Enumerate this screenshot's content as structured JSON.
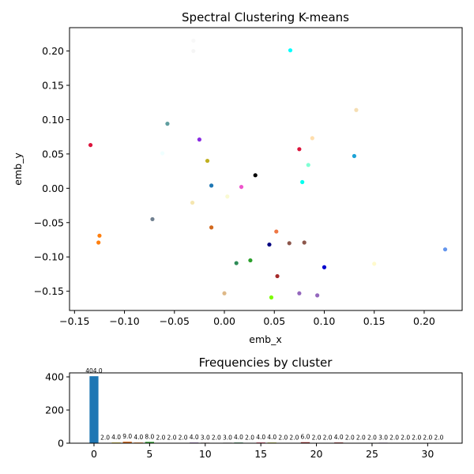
{
  "chart_data": [
    {
      "type": "scatter",
      "title": "Spectral Clustering K-means",
      "xlabel": "emb_x",
      "ylabel": "emb_y",
      "xlim": [
        -0.155,
        0.238
      ],
      "ylim": [
        -0.178,
        0.234
      ],
      "xticks": [
        -0.15,
        -0.1,
        -0.05,
        0.0,
        0.05,
        0.1,
        0.15,
        0.2
      ],
      "xtick_labels": [
        "−0.15",
        "−0.10",
        "−0.05",
        "0.00",
        "0.05",
        "0.10",
        "0.15",
        "0.20"
      ],
      "yticks": [
        -0.15,
        -0.1,
        -0.05,
        0.0,
        0.05,
        0.1,
        0.15,
        0.2
      ],
      "ytick_labels": [
        "−0.15",
        "−0.10",
        "−0.05",
        "0.00",
        "0.05",
        "0.10",
        "0.15",
        "0.20"
      ],
      "grid": false,
      "points": [
        {
          "x": -0.031,
          "y": 0.215,
          "color": "#f8f8f8"
        },
        {
          "x": -0.031,
          "y": 0.2,
          "color": "#f5f5f5"
        },
        {
          "x": 0.066,
          "y": 0.201,
          "color": "#00ffff"
        },
        {
          "x": 0.132,
          "y": 0.114,
          "color": "#f5deb3"
        },
        {
          "x": -0.057,
          "y": 0.094,
          "color": "#5f9ea0"
        },
        {
          "x": 0.088,
          "y": 0.073,
          "color": "#ffdead"
        },
        {
          "x": -0.134,
          "y": 0.063,
          "color": "#dc143c"
        },
        {
          "x": -0.025,
          "y": 0.071,
          "color": "#8a2be2"
        },
        {
          "x": 0.075,
          "y": 0.057,
          "color": "#dc143c"
        },
        {
          "x": -0.062,
          "y": 0.051,
          "color": "#f0ffff"
        },
        {
          "x": 0.13,
          "y": 0.047,
          "color": "#1ea3d6"
        },
        {
          "x": -0.017,
          "y": 0.04,
          "color": "#c0b020"
        },
        {
          "x": 0.084,
          "y": 0.034,
          "color": "#7fffd4"
        },
        {
          "x": 0.031,
          "y": 0.019,
          "color": "#000000"
        },
        {
          "x": 0.078,
          "y": 0.009,
          "color": "#00ffee"
        },
        {
          "x": -0.013,
          "y": 0.004,
          "color": "#1f77b4"
        },
        {
          "x": 0.017,
          "y": 0.002,
          "color": "#ee55cc"
        },
        {
          "x": 0.003,
          "y": -0.012,
          "color": "#fafad2"
        },
        {
          "x": -0.032,
          "y": -0.021,
          "color": "#f5e6b0"
        },
        {
          "x": -0.072,
          "y": -0.045,
          "color": "#708090"
        },
        {
          "x": -0.013,
          "y": -0.057,
          "color": "#d2691e"
        },
        {
          "x": 0.052,
          "y": -0.063,
          "color": "#ee7744"
        },
        {
          "x": -0.125,
          "y": -0.069,
          "color": "#ff7f0e"
        },
        {
          "x": -0.126,
          "y": -0.079,
          "color": "#ff7f0e"
        },
        {
          "x": 0.065,
          "y": -0.08,
          "color": "#8c564b"
        },
        {
          "x": 0.08,
          "y": -0.079,
          "color": "#8c564b"
        },
        {
          "x": 0.045,
          "y": -0.082,
          "color": "#000080"
        },
        {
          "x": 0.221,
          "y": -0.089,
          "color": "#6495ed"
        },
        {
          "x": 0.026,
          "y": -0.105,
          "color": "#2ca02c"
        },
        {
          "x": 0.012,
          "y": -0.109,
          "color": "#2e8b57"
        },
        {
          "x": 0.15,
          "y": -0.11,
          "color": "#fffacd"
        },
        {
          "x": 0.1,
          "y": -0.115,
          "color": "#0000cd"
        },
        {
          "x": 0.053,
          "y": -0.128,
          "color": "#a52a2a"
        },
        {
          "x": 0.0,
          "y": -0.153,
          "color": "#deb887"
        },
        {
          "x": 0.075,
          "y": -0.153,
          "color": "#9467bd"
        },
        {
          "x": 0.093,
          "y": -0.156,
          "color": "#9467bd"
        },
        {
          "x": 0.047,
          "y": -0.159,
          "color": "#7cfc00"
        }
      ]
    },
    {
      "type": "bar",
      "title": "Frequencies by cluster",
      "xlabel": "",
      "ylabel": "",
      "xlim": [
        -2.2,
        33.1
      ],
      "ylim": [
        0,
        424
      ],
      "xticks": [
        0,
        5,
        10,
        15,
        20,
        25,
        30
      ],
      "yticks": [
        0,
        200,
        400
      ],
      "grid": false,
      "categories": [
        0,
        1,
        2,
        3,
        4,
        5,
        6,
        7,
        8,
        9,
        10,
        11,
        12,
        13,
        14,
        15,
        16,
        17,
        18,
        19,
        20,
        21,
        22,
        23,
        24,
        25,
        26,
        27,
        28,
        29,
        30,
        31
      ],
      "values": [
        404,
        2,
        4,
        9,
        4,
        8,
        2,
        2,
        2,
        4,
        3,
        2,
        3,
        4,
        2,
        4,
        4,
        2,
        2,
        6,
        2,
        2,
        4,
        2,
        2,
        2,
        3,
        2,
        2,
        2,
        2,
        2
      ],
      "value_labels": [
        "404.0",
        "2.0",
        "4.0",
        "9.0",
        "4.0",
        "8.0",
        "2.0",
        "2.0",
        "2.0",
        "4.0",
        "3.0",
        "2.0",
        "3.0",
        "4.0",
        "2.0",
        "4.0",
        "4.0",
        "2.0",
        "2.0",
        "6.0",
        "2.0",
        "2.0",
        "4.0",
        "2.0",
        "2.0",
        "2.0",
        "3.0",
        "2.0",
        "2.0",
        "2.0",
        "2.0",
        "2.0"
      ],
      "colors": [
        "#1f77b4",
        "#1f77b4",
        "#e6c300",
        "#d2691e",
        "#ff7f0e",
        "#2ca02c",
        "#2ca02c",
        "#2e8b57",
        "#d62728",
        "#9467bd",
        "#8c564b",
        "#ee55cc",
        "#7f7f7f",
        "#2e8b57",
        "#17becf",
        "#dc143c",
        "#bcbd22",
        "#00ffff",
        "#d62728",
        "#a52a2a",
        "#8c564b",
        "#4b0082",
        "#8b0000",
        "#ff7f0e",
        "#1f77b4",
        "#2ca02c",
        "#9467bd",
        "#e377c2",
        "#7f7f7f",
        "#bcbd22",
        "#17becf",
        "#1f77b4"
      ]
    }
  ]
}
